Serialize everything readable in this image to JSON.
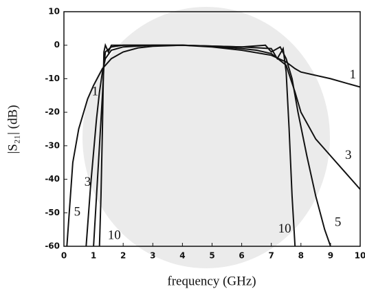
{
  "chart_data": {
    "type": "line",
    "xlabel": "frequency (GHz)",
    "ylabel": "|S₂₁| (dB)",
    "xlim": [
      0,
      10
    ],
    "xticks": [
      0,
      1,
      2,
      3,
      4,
      5,
      6,
      7,
      8,
      9,
      10
    ],
    "ylim": [
      -60,
      10
    ],
    "yticks": [
      10,
      0,
      -10,
      -20,
      -30,
      -40,
      -50,
      -60
    ],
    "grid": false,
    "series": [
      {
        "name": "1",
        "color": "#111111",
        "x": [
          0.1,
          0.3,
          0.5,
          0.8,
          1.0,
          1.3,
          1.6,
          2,
          2.5,
          3,
          4,
          5,
          6,
          7,
          7.5,
          7.8,
          8,
          9,
          10
        ],
        "values": [
          -60,
          -35,
          -25,
          -16,
          -12,
          -7,
          -4,
          -2,
          -0.8,
          -0.3,
          0,
          -0.5,
          -1.5,
          -3,
          -5,
          -7,
          -8,
          -10,
          -12.5
        ]
      },
      {
        "name": "3",
        "color": "#111111",
        "x": [
          0.75,
          0.9,
          1.0,
          1.1,
          1.2,
          1.3,
          1.4,
          1.6,
          2,
          3,
          4,
          5,
          6,
          6.5,
          7,
          7.5,
          7.8,
          8,
          8.5,
          9,
          9.5,
          10
        ],
        "values": [
          -60,
          -42,
          -32,
          -22,
          -14,
          -8,
          -4,
          -1.5,
          -0.5,
          0,
          0,
          -0.3,
          -1,
          -1.5,
          -2.5,
          -6,
          -14,
          -20,
          -28,
          -33,
          -38,
          -43
        ]
      },
      {
        "name": "5",
        "color": "#111111",
        "x": [
          1.0,
          1.1,
          1.2,
          1.3,
          1.35,
          1.4,
          1.6,
          2,
          4,
          6,
          6.8,
          7,
          7.3,
          7.5,
          7.7,
          7.9,
          8.2,
          8.5,
          8.8,
          9.0
        ],
        "values": [
          -60,
          -45,
          -30,
          -15,
          -6,
          -2,
          -0.5,
          0,
          0,
          -0.5,
          0,
          -2,
          -0.5,
          -4,
          -10,
          -20,
          -33,
          -45,
          -55,
          -60
        ]
      },
      {
        "name": "10",
        "color": "#111111",
        "x": [
          1.2,
          1.25,
          1.3,
          1.33,
          1.35,
          1.4,
          1.5,
          1.6,
          2,
          4,
          6,
          7,
          7.2,
          7.4,
          7.5,
          7.6,
          7.7,
          7.8
        ],
        "values": [
          -60,
          -45,
          -25,
          -10,
          -2,
          0,
          -2,
          0,
          0,
          0,
          -0.5,
          -1,
          -4,
          -1,
          -8,
          -25,
          -45,
          -60
        ]
      }
    ]
  }
}
